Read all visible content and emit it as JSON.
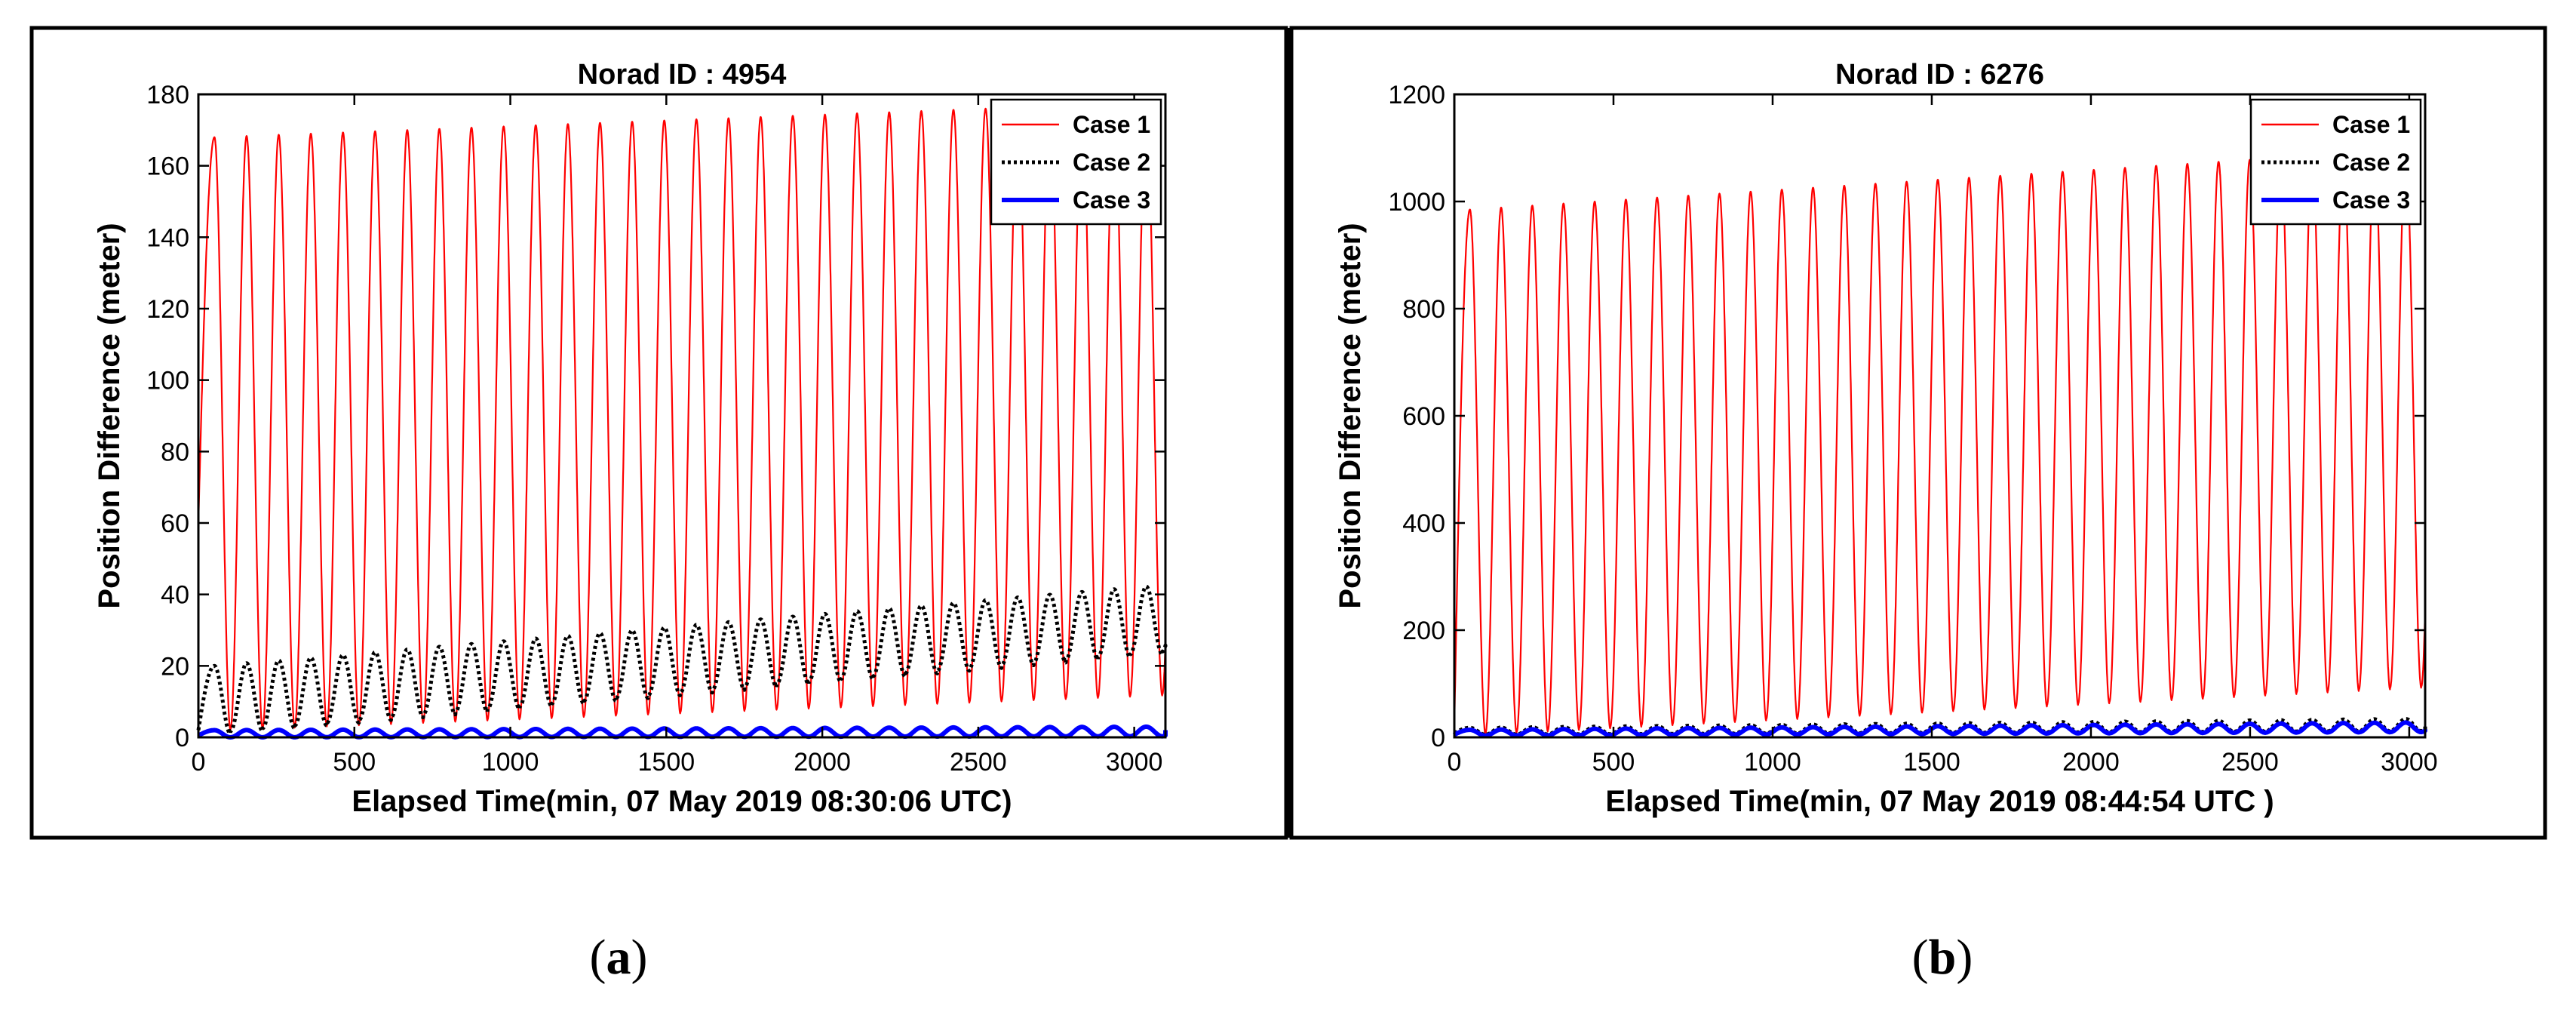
{
  "colors": {
    "case1": "#ff0000",
    "case2": "#000000",
    "case3": "#0000ff",
    "frame": "#000000",
    "background": "#ffffff"
  },
  "chart_data": [
    {
      "type": "line",
      "panel_label": "(a)",
      "title": "Norad ID : 4954",
      "xlabel": "Elapsed Time(min, 07 May 2019 08:30:06 UTC)",
      "ylabel": "Position Difference (meter)",
      "xlim": [
        0,
        3100
      ],
      "ylim": [
        0,
        180
      ],
      "xticks": [
        0,
        500,
        1000,
        1500,
        2000,
        2500,
        3000
      ],
      "yticks": [
        0,
        20,
        40,
        60,
        80,
        100,
        120,
        140,
        160,
        180
      ],
      "legend": "top-right",
      "series": [
        {
          "name": "Case 1",
          "style": "solid",
          "period_min": 103,
          "start": 60,
          "max": [
            168,
            178
          ],
          "min": [
            2,
            12
          ],
          "end": 12
        },
        {
          "name": "Case 2",
          "style": "dotted",
          "period_min": 103,
          "start": 2,
          "max": [
            20,
            43
          ],
          "min": [
            1,
            24
          ],
          "end": 25
        },
        {
          "name": "Case 3",
          "style": "solid-thick",
          "period_min": 103,
          "start": 0.5,
          "max": [
            2,
            3
          ],
          "min": [
            0,
            0.3
          ],
          "end": 2
        }
      ]
    },
    {
      "type": "line",
      "panel_label": "(b)",
      "title": "Norad ID : 6276",
      "xlabel": "Elapsed Time(min, 07 May 2019 08:44:54 UTC )",
      "ylabel": "Position Difference (meter)",
      "xlim": [
        0,
        3050
      ],
      "ylim": [
        0,
        1200
      ],
      "xticks": [
        0,
        500,
        1000,
        1500,
        2000,
        2500,
        3000
      ],
      "yticks": [
        0,
        200,
        400,
        600,
        800,
        1000,
        1200
      ],
      "legend": "top-right",
      "series": [
        {
          "name": "Case 1",
          "style": "solid",
          "period_min": 98,
          "start": 20,
          "max": [
            985,
            1100
          ],
          "min": [
            5,
            95
          ],
          "end": 150
        },
        {
          "name": "Case 2",
          "style": "dotted",
          "period_min": 98,
          "start": 8,
          "max": [
            18,
            35
          ],
          "min": [
            5,
            12
          ],
          "end": 20
        },
        {
          "name": "Case 3",
          "style": "solid-thick",
          "period_min": 98,
          "start": 5,
          "max": [
            14,
            28
          ],
          "min": [
            3,
            10
          ],
          "end": 15
        }
      ]
    }
  ]
}
